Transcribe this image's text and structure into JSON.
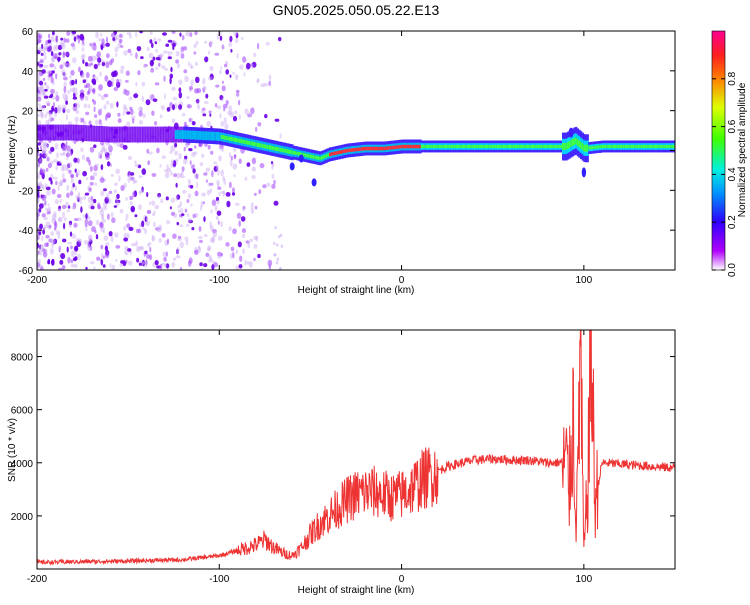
{
  "title": "GN05.2025.050.05.22.E13",
  "chart_data": [
    {
      "type": "heatmap",
      "xlabel": "Height of straight line (km)",
      "ylabel": "Frequency (Hz)",
      "xlim": [
        -200,
        150
      ],
      "ylim": [
        -60,
        60
      ],
      "xticks": [
        -200,
        -100,
        0,
        100
      ],
      "yticks": [
        -60,
        -40,
        -20,
        0,
        20,
        40,
        60
      ],
      "colorbar": {
        "label": "Normalized spectral amplitude",
        "range": [
          0,
          1
        ],
        "ticks": [
          "0.0",
          "0.2",
          "0.4",
          "0.6",
          "0.8"
        ]
      },
      "ridge": {
        "x": [
          -180,
          -160,
          -140,
          -120,
          -100,
          -90,
          -80,
          -70,
          -60,
          -50,
          -45,
          -40,
          -30,
          -20,
          -10,
          0,
          10,
          20,
          40,
          60,
          80,
          90,
          95,
          100,
          110,
          130,
          150
        ],
        "y": [
          9,
          8,
          8,
          8,
          7,
          5,
          3,
          1,
          -1,
          -3,
          -4,
          -2,
          0,
          1,
          1,
          2,
          2,
          2,
          2,
          2,
          2,
          2,
          5,
          1,
          2,
          2,
          2
        ]
      }
    },
    {
      "type": "line",
      "xlabel": "Height of straight line (km)",
      "ylabel": "SNR (10 * v/v)",
      "xlim": [
        -200,
        150
      ],
      "ylim": [
        0,
        9000
      ],
      "xticks": [
        -200,
        -100,
        0,
        100
      ],
      "yticks": [
        2000,
        4000,
        6000,
        8000
      ],
      "series": [
        {
          "color": "#ee3333",
          "x": [
            -200,
            -150,
            -120,
            -100,
            -90,
            -80,
            -75,
            -70,
            -65,
            -60,
            -55,
            -50,
            -45,
            -40,
            -35,
            -30,
            -25,
            -20,
            -15,
            -10,
            -5,
            0,
            5,
            10,
            15,
            20,
            25,
            30,
            40,
            50,
            60,
            70,
            80,
            85,
            90,
            92,
            94,
            96,
            98,
            100,
            102,
            104,
            106,
            110,
            120,
            130,
            140,
            150
          ],
          "y": [
            250,
            300,
            350,
            500,
            700,
            900,
            1100,
            800,
            600,
            500,
            800,
            1300,
            1700,
            2000,
            2300,
            2600,
            2800,
            2900,
            2900,
            2800,
            2700,
            2800,
            3000,
            3300,
            3500,
            3700,
            3850,
            3950,
            4100,
            4150,
            4100,
            4100,
            4000,
            4000,
            4050,
            3000,
            6000,
            1500,
            8500,
            600,
            3000,
            8900,
            2500,
            4000,
            3950,
            3900,
            3850,
            3800
          ]
        }
      ]
    }
  ]
}
